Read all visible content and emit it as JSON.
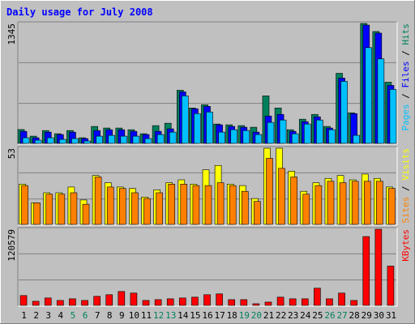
{
  "chart_data": [
    {
      "type": "bar",
      "title": "Daily usage for July 2008",
      "legend_separator": " / ",
      "ylim": [
        0,
        1345
      ],
      "yticks": [
        1345
      ],
      "series": [
        {
          "name": "Pages",
          "color": "#00c0ff",
          "values": [
            63,
            36,
            63,
            45,
            54,
            27,
            81,
            90,
            81,
            81,
            54,
            99,
            126,
            533,
            334,
            352,
            126,
            153,
            144,
            99,
            235,
            262,
            108,
            217,
            262,
            153,
            696,
            90,
            1074,
            948,
            605
          ]
        },
        {
          "name": "Files",
          "color": "#0000ff",
          "values": [
            135,
            63,
            126,
            99,
            126,
            54,
            144,
            153,
            153,
            135,
            99,
            135,
            163,
            578,
            388,
            415,
            208,
            190,
            181,
            126,
            307,
            325,
            135,
            244,
            298,
            172,
            732,
            334,
            1327,
            1237,
            650
          ]
        },
        {
          "name": "Hits",
          "color": "#00805c",
          "values": [
            155,
            81,
            144,
            108,
            144,
            63,
            190,
            172,
            172,
            153,
            108,
            199,
            226,
            596,
            397,
            433,
            217,
            208,
            199,
            181,
            533,
            397,
            153,
            271,
            325,
            190,
            786,
            343,
            1345,
            1255,
            686
          ]
        }
      ]
    },
    {
      "type": "bar",
      "legend_separator": " / ",
      "ylim": [
        0,
        53
      ],
      "yticks": [
        53
      ],
      "series": [
        {
          "name": "Sites",
          "color": "#ff8000",
          "values": [
            27,
            15,
            21,
            21,
            22,
            14,
            33,
            26,
            25,
            22,
            18,
            22,
            28,
            28,
            27,
            27,
            29,
            27,
            23,
            16,
            46,
            39,
            33,
            21,
            27,
            30,
            29,
            30,
            30,
            30,
            25
          ]
        },
        {
          "name": "Visits",
          "color": "#ffff00",
          "values": [
            28,
            15,
            22,
            22,
            26,
            17,
            34,
            29,
            26,
            25,
            19,
            24,
            29,
            31,
            28,
            38,
            41,
            28,
            27,
            18,
            53,
            53,
            37,
            23,
            29,
            32,
            34,
            31,
            35,
            32,
            26
          ]
        }
      ]
    },
    {
      "type": "bar",
      "ylim": [
        0,
        120579
      ],
      "yticks": [
        120579
      ],
      "categories": [
        "1",
        "2",
        "3",
        "4",
        "5",
        "6",
        "7",
        "8",
        "9",
        "10",
        "11",
        "12",
        "13",
        "14",
        "15",
        "16",
        "17",
        "18",
        "19",
        "20",
        "21",
        "22",
        "23",
        "24",
        "25",
        "26",
        "27",
        "28",
        "29",
        "30",
        "31"
      ],
      "category_colors": [
        "#000000",
        "#000000",
        "#000000",
        "#000000",
        "#00805c",
        "#00805c",
        "#000000",
        "#000000",
        "#000000",
        "#000000",
        "#000000",
        "#00805c",
        "#00805c",
        "#000000",
        "#000000",
        "#000000",
        "#000000",
        "#000000",
        "#00805c",
        "#00805c",
        "#000000",
        "#000000",
        "#000000",
        "#000000",
        "#000000",
        "#00805c",
        "#00805c",
        "#000000",
        "#000000",
        "#000000",
        "#000000"
      ],
      "series": [
        {
          "name": "KBytes",
          "color": "#ff0000",
          "values": [
            15560,
            6500,
            11700,
            7800,
            10400,
            7800,
            14300,
            16900,
            22000,
            19500,
            7800,
            9100,
            10400,
            11700,
            13000,
            16900,
            18200,
            9100,
            9100,
            2600,
            5200,
            13000,
            10400,
            10400,
            27200,
            10400,
            19500,
            7800,
            109000,
            120579,
            62200
          ]
        }
      ]
    }
  ]
}
